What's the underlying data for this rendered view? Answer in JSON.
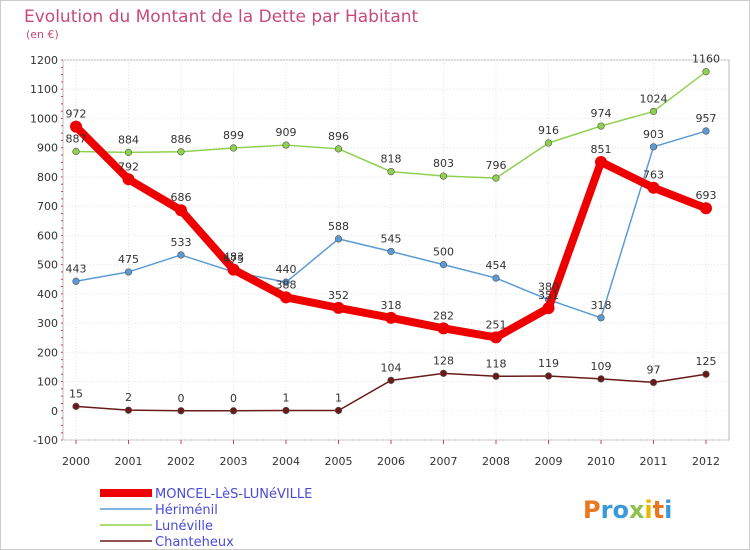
{
  "chart_data": {
    "type": "line",
    "title": "Evolution du Montant de la Dette par Habitant",
    "subtitle": "(en €)",
    "xlabel": "",
    "ylabel": "",
    "categories": [
      "2000",
      "2001",
      "2002",
      "2003",
      "2004",
      "2005",
      "2006",
      "2007",
      "2008",
      "2009",
      "2010",
      "2011",
      "2012"
    ],
    "ylim": [
      -100,
      1200
    ],
    "yticks": [
      "-100",
      "0",
      "100",
      "200",
      "300",
      "400",
      "500",
      "600",
      "700",
      "800",
      "900",
      "1000",
      "1100",
      "1200"
    ],
    "grid": true,
    "legend_placement": "bottom-left",
    "series": [
      {
        "name": "MONCEL-LèS-LUNéVILLE",
        "color": "#ee0000",
        "values": [
          972,
          792,
          686,
          483,
          388,
          352,
          318,
          282,
          251,
          351,
          851,
          763,
          693
        ]
      },
      {
        "name": "Hériménil",
        "color": "#5b9bd5",
        "values": [
          443,
          475,
          533,
          475,
          440,
          588,
          545,
          500,
          454,
          380,
          318,
          903,
          957
        ]
      },
      {
        "name": "Lunéville",
        "color": "#8fd14f",
        "values": [
          887,
          884,
          886,
          899,
          909,
          896,
          818,
          803,
          796,
          916,
          974,
          1024,
          1160
        ]
      },
      {
        "name": "Chanteheux",
        "color": "#6b1a1a",
        "values": [
          15,
          2,
          0,
          0,
          1,
          1,
          104,
          128,
          118,
          119,
          109,
          97,
          125
        ]
      }
    ]
  },
  "logo": {
    "text": "Proxiti"
  }
}
